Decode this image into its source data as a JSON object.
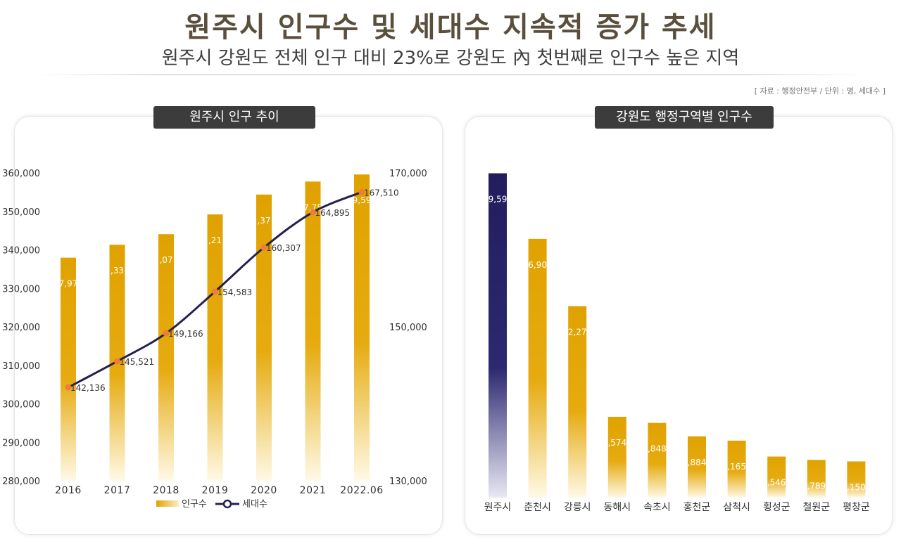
{
  "header": {
    "title": "원주시 인구수 및 세대수 지속적 증가 추세",
    "subtitle": "원주시 강원도 전체 인구 대비 23%로 강원도 內 첫번째로 인구수 높은 지역",
    "source": "[ 자료 : 행정안전부 / 단위 : 명, 세대수 ]"
  },
  "colors": {
    "bar_gold": "#e0a200",
    "bar_navy": "#231d5e",
    "line_navy": "#23204f",
    "marker_orange": "#f07c3a",
    "tab_bg": "#3c3c3c"
  },
  "chart_data": [
    {
      "type": "bar",
      "title": "원주시 인구 추이",
      "categories": [
        "2016",
        "2017",
        "2018",
        "2019",
        "2020",
        "2021",
        "2022.06"
      ],
      "series": [
        {
          "name": "인구수",
          "type": "bar",
          "axis": "left",
          "values": [
            337970,
            341330,
            344070,
            349210,
            354370,
            357750,
            359590
          ],
          "data_labels": [
            "7,97",
            ",33",
            ",07",
            ",21",
            ",37",
            "7,75",
            "9,59"
          ]
        },
        {
          "name": "세대수",
          "type": "line",
          "axis": "right",
          "values": [
            142136,
            145521,
            149166,
            154583,
            160307,
            164895,
            167510
          ],
          "data_labels": [
            "142,136",
            "145,521",
            "149,166",
            "154,583",
            "160,307",
            "164,895",
            "167,510"
          ]
        }
      ],
      "y_left": {
        "min": 280000,
        "max": 360000,
        "ticks": [
          280000,
          290000,
          300000,
          310000,
          320000,
          330000,
          340000,
          350000,
          360000
        ],
        "tick_labels": [
          "280,000",
          "290,000",
          "300,000",
          "310,000",
          "320,000",
          "330,000",
          "340,000",
          "350,000",
          "360,000"
        ]
      },
      "y_right": {
        "min": 130000,
        "max": 170000,
        "ticks": [
          130000,
          150000,
          170000
        ],
        "tick_labels": [
          "130,000",
          "150,000",
          "170,000"
        ]
      },
      "legend": {
        "position": "bottom",
        "entries": [
          {
            "label": "인구수",
            "kind": "bar"
          },
          {
            "label": "세대수",
            "kind": "line"
          }
        ]
      }
    },
    {
      "type": "bar",
      "title": "강원도 행정구역별 인구수",
      "categories": [
        "원주시",
        "춘천시",
        "강릉시",
        "동해시",
        "속초시",
        "홍천군",
        "삼척시",
        "횡성군",
        "철원군",
        "평창군"
      ],
      "values": [
        359590,
        286900,
        212270,
        89574,
        82848,
        67884,
        63165,
        45546,
        41789,
        40150
      ],
      "data_labels": [
        "9,59",
        "6,90",
        "2,27",
        ",574",
        ",848",
        ",884",
        ",165",
        ",546",
        ",789",
        ",150"
      ],
      "highlight_index": 0,
      "y_range": [
        0,
        360000
      ]
    }
  ]
}
